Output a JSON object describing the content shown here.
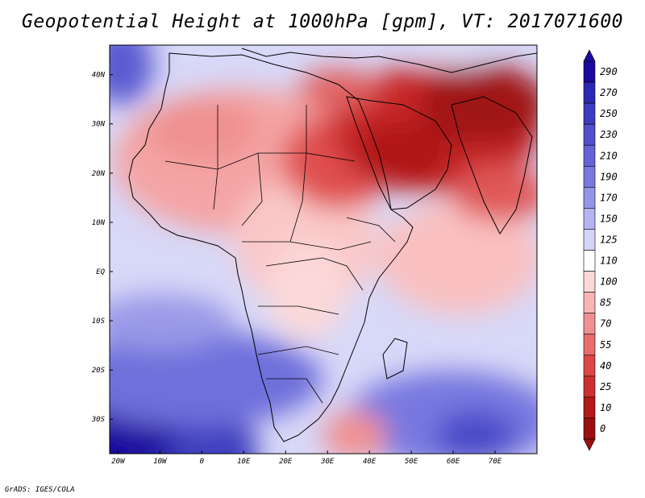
{
  "title": "Geopotential Height at 1000hPa [gpm], VT: 2017071600",
  "credit": "GrADS: IGES/COLA",
  "map": {
    "field": "Geopotential Height",
    "level": "1000hPa",
    "units": "gpm",
    "valid_time": "2017071600",
    "lon_range": [
      -22,
      80
    ],
    "lat_range": [
      -37,
      46
    ],
    "lon_ticks": [
      "20W",
      "10W",
      "0",
      "10E",
      "20E",
      "30E",
      "40E",
      "50E",
      "60E",
      "70E"
    ],
    "lon_values": [
      -20,
      -10,
      0,
      10,
      20,
      30,
      40,
      50,
      60,
      70
    ],
    "lat_ticks": [
      "40N",
      "30N",
      "20N",
      "10N",
      "EQ",
      "10S",
      "20S",
      "30S"
    ],
    "lat_values": [
      40,
      30,
      20,
      10,
      0,
      -10,
      -20,
      -30
    ]
  },
  "colorbar": {
    "levels": [
      "290",
      "270",
      "250",
      "230",
      "210",
      "190",
      "170",
      "150",
      "125",
      "110",
      "100",
      "85",
      "70",
      "55",
      "40",
      "25",
      "10",
      "0"
    ],
    "colors": [
      "#1c0a9e",
      "#2a2ab4",
      "#3c3cc0",
      "#5050cc",
      "#6464d6",
      "#7878e0",
      "#9494e8",
      "#b4b4f0",
      "#d4d4f8",
      "#ffffff",
      "#fcd8d8",
      "#f8b4b4",
      "#f09090",
      "#e86c6c",
      "#dc4848",
      "#cc3030",
      "#b41a1a",
      "#9a1010"
    ]
  }
}
